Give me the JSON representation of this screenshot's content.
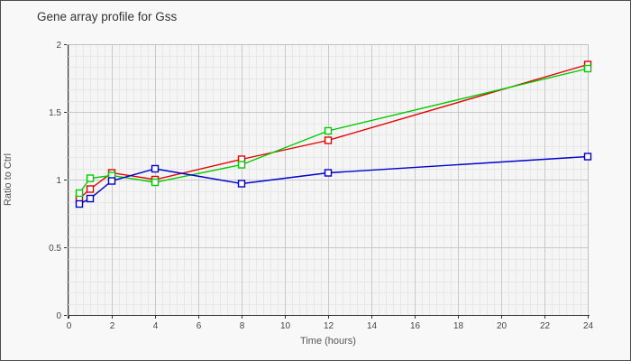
{
  "window": {
    "background": "#f8f8f8",
    "border_color": "#4d4d4d"
  },
  "chart_data": {
    "type": "line",
    "title": "Gene array profile for Gss",
    "xlabel": "Time (hours)",
    "ylabel": "Ratio to Ctrl",
    "xlim": [
      0,
      24
    ],
    "ylim": [
      0,
      2
    ],
    "x_ticks": [
      0,
      2,
      4,
      6,
      8,
      10,
      12,
      14,
      16,
      18,
      20,
      22,
      24
    ],
    "y_ticks": [
      0,
      0.5,
      1,
      1.5,
      2
    ],
    "y_tick_labels": [
      "0",
      "0.5",
      "1",
      "1.5",
      "2"
    ],
    "x_minor_step": 0.3333333,
    "y_minor_step": 0.0833333,
    "grid": "major+minor, no legend",
    "marker": "open-square",
    "x": [
      0.5,
      1,
      2,
      4,
      8,
      12,
      24
    ],
    "series": [
      {
        "name": "series-1-red",
        "color": "#e60000",
        "values": [
          0.86,
          0.93,
          1.05,
          1.0,
          1.15,
          1.29,
          1.85
        ]
      },
      {
        "name": "series-2-green",
        "color": "#00cc00",
        "values": [
          0.9,
          1.01,
          1.03,
          0.98,
          1.11,
          1.36,
          1.82
        ]
      },
      {
        "name": "series-3-blue",
        "color": "#0000cc",
        "values": [
          0.82,
          0.86,
          0.99,
          1.08,
          0.97,
          1.05,
          1.17
        ]
      }
    ],
    "style": {
      "plot_bg": "#f5f5f5",
      "grid_minor": "#e7e7e7",
      "grid_major": "#c9c9c9",
      "plot_border": "#c0c0c0",
      "axis": "#333333",
      "tick_label_color": "#444444"
    }
  }
}
